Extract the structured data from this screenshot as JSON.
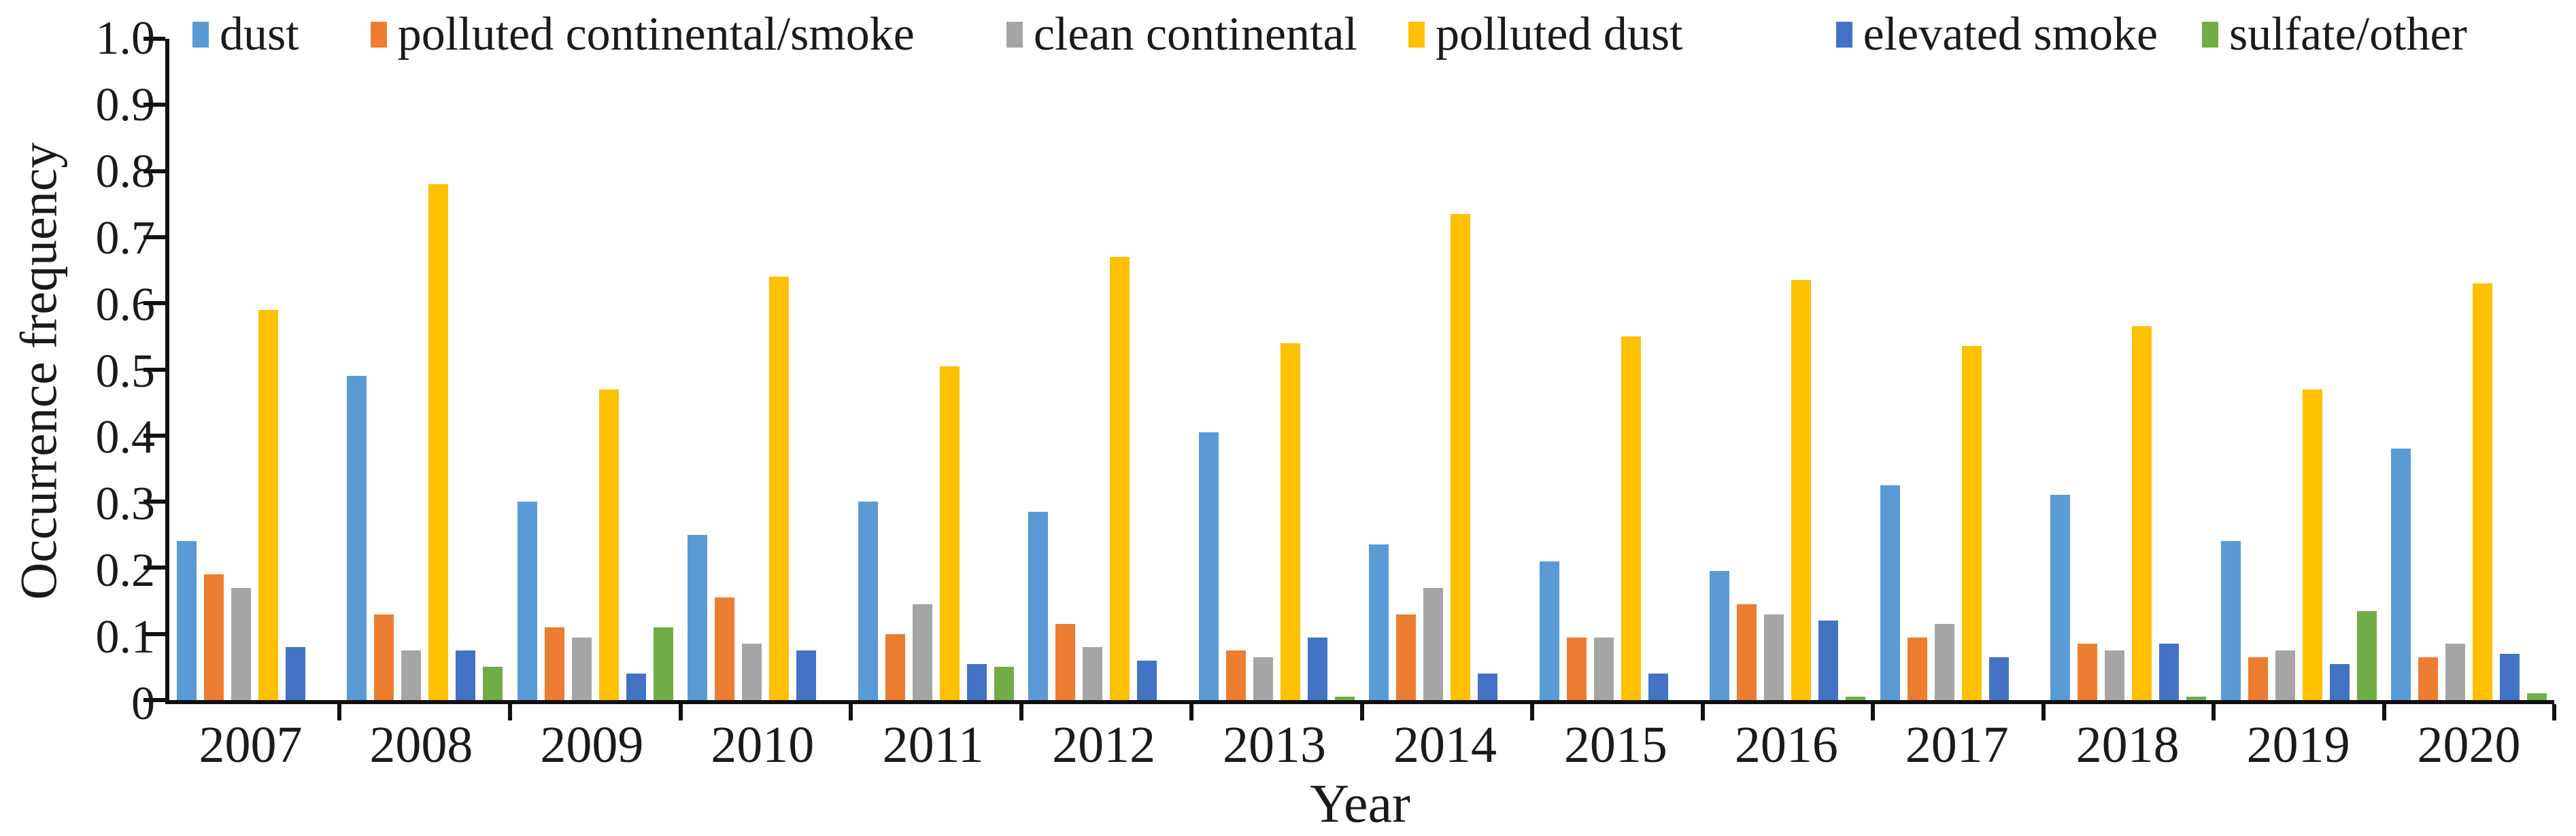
{
  "figure_title": "",
  "chart_data": {
    "type": "bar",
    "title": "",
    "xlabel": "Year",
    "ylabel": "Occurrence frequency",
    "ylim": [
      0,
      1.0
    ],
    "ytick_step": 0.1,
    "ytick_labels": [
      "1.0",
      "0.9",
      "0.8",
      "0.7",
      "0.6",
      "0.5",
      "0.4",
      "0.3",
      "0.2",
      "0.1",
      "0"
    ],
    "grid": false,
    "legend_position": "top",
    "categories": [
      "2007",
      "2008",
      "2009",
      "2010",
      "2011",
      "2012",
      "2013",
      "2014",
      "2015",
      "2016",
      "2017",
      "2018",
      "2019",
      "2020"
    ],
    "series": [
      {
        "name": "dust",
        "color": "#5B9BD5",
        "values": [
          0.24,
          0.49,
          0.3,
          0.25,
          0.3,
          0.285,
          0.405,
          0.235,
          0.21,
          0.195,
          0.325,
          0.31,
          0.24,
          0.38
        ]
      },
      {
        "name": "polluted continental/smoke",
        "color": "#ED7D31",
        "values": [
          0.19,
          0.13,
          0.11,
          0.155,
          0.1,
          0.115,
          0.075,
          0.13,
          0.095,
          0.145,
          0.095,
          0.085,
          0.065,
          0.065
        ]
      },
      {
        "name": "clean continental",
        "color": "#A5A5A5",
        "values": [
          0.17,
          0.075,
          0.095,
          0.085,
          0.145,
          0.08,
          0.065,
          0.17,
          0.095,
          0.13,
          0.115,
          0.075,
          0.075,
          0.085
        ]
      },
      {
        "name": "polluted dust",
        "color": "#FFC000",
        "values": [
          0.59,
          0.78,
          0.47,
          0.64,
          0.505,
          0.67,
          0.54,
          0.735,
          0.55,
          0.635,
          0.535,
          0.565,
          0.47,
          0.63
        ]
      },
      {
        "name": "elevated smoke",
        "color": "#4472C4",
        "values": [
          0.08,
          0.075,
          0.04,
          0.075,
          0.055,
          0.06,
          0.095,
          0.04,
          0.04,
          0.12,
          0.065,
          0.085,
          0.055,
          0.07
        ]
      },
      {
        "name": "sulfate/other",
        "color": "#70AD47",
        "values": [
          0,
          0.05,
          0.11,
          0,
          0.05,
          0,
          0.005,
          0,
          0,
          0.005,
          0,
          0.005,
          0.135,
          0.01
        ]
      }
    ]
  }
}
